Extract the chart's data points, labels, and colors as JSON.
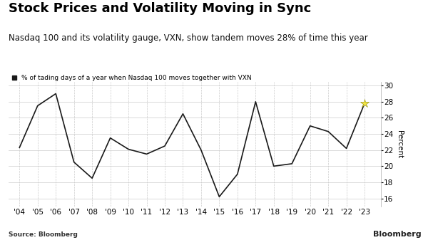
{
  "title": "Stock Prices and Volatility Moving in Sync",
  "subtitle": "Nasdaq 100 and its volatility gauge, VXN, show tandem moves 28% of time this year",
  "legend_label": "% of tading days of a year when Nasdaq 100 moves together with VXN",
  "source": "Source: Bloomberg",
  "watermark": "Bloomberg",
  "years": [
    2004,
    2005,
    2006,
    2007,
    2008,
    2009,
    2010,
    2011,
    2012,
    2013,
    2014,
    2015,
    2016,
    2017,
    2018,
    2019,
    2020,
    2021,
    2022,
    2023
  ],
  "values": [
    22.3,
    27.5,
    29.0,
    20.5,
    18.5,
    23.5,
    22.1,
    21.5,
    22.5,
    26.5,
    22.0,
    16.2,
    19.0,
    28.0,
    20.0,
    20.3,
    25.0,
    24.3,
    22.2,
    27.8
  ],
  "highlight_color": "#f5e642",
  "line_color": "#1a1a1a",
  "bg_color": "#ffffff",
  "ylabel": "Percent",
  "ylim": [
    15,
    30.5
  ],
  "yticks": [
    16,
    18,
    20,
    22,
    24,
    26,
    28,
    30
  ],
  "title_fontsize": 13,
  "subtitle_fontsize": 8.5,
  "legend_fontsize": 6.5,
  "axis_fontsize": 7.5,
  "ylabel_fontsize": 7.5
}
